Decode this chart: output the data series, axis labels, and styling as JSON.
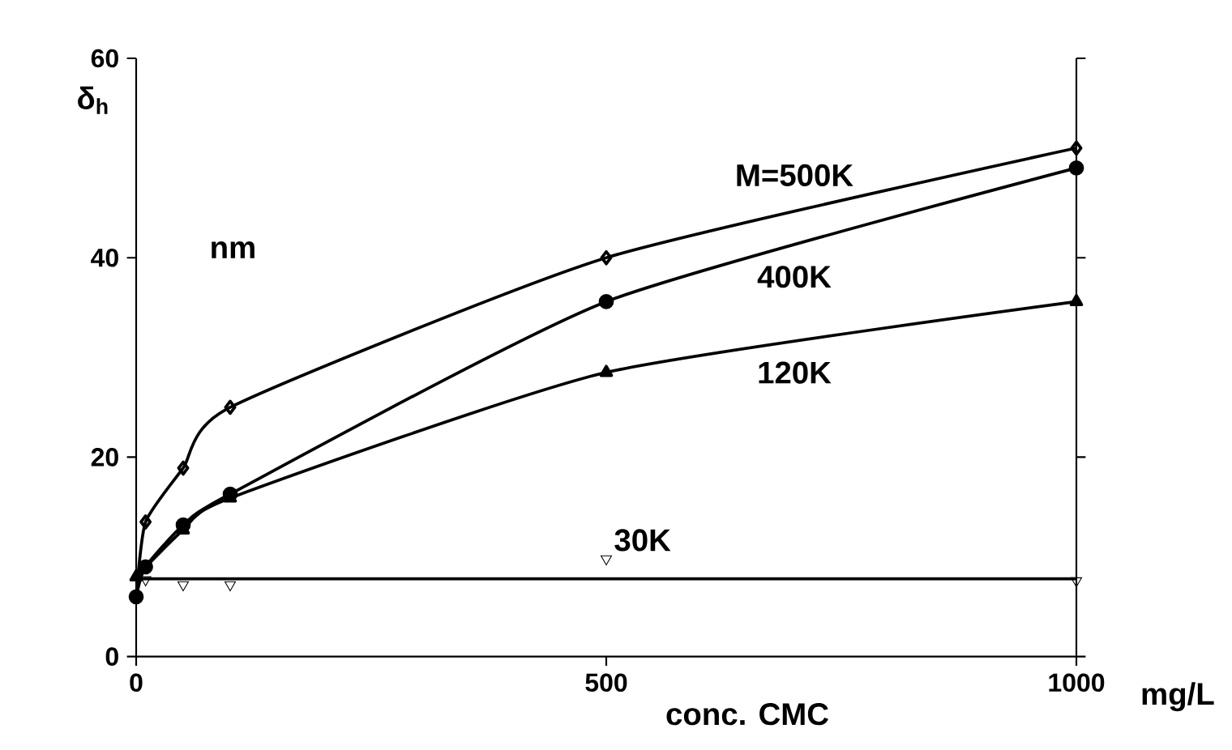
{
  "chart_data": {
    "type": "line",
    "xlabel": "conc. CMC",
    "ylabel": "δ$_{h}$",
    "annotations": [
      "nm",
      "mg/L"
    ],
    "xlim": [
      0,
      1000
    ],
    "xticks": [
      0,
      500,
      1000
    ],
    "ylim": [
      0,
      60
    ],
    "yticks": [
      0,
      20,
      40,
      60
    ],
    "grid": false,
    "series": [
      {
        "name": "M=500K",
        "color": "#000000",
        "marker": "diamond",
        "x": [
          0,
          10,
          50,
          100,
          500,
          1000
        ],
        "values": [
          6,
          13.5,
          18.9,
          25,
          40,
          51
        ]
      },
      {
        "name": "400K",
        "color": "#000000",
        "marker": "circle",
        "x": [
          0,
          10,
          50,
          100,
          500,
          1000
        ],
        "values": [
          6,
          9,
          13.2,
          16.3,
          35.6,
          49
        ]
      },
      {
        "name": "120K",
        "color": "#000000",
        "marker": "triangle",
        "x": [
          0,
          10,
          50,
          100,
          500,
          1000
        ],
        "values": [
          8,
          null,
          12.7,
          15.9,
          28.5,
          35.6
        ]
      },
      {
        "name": "30K",
        "type": "scatter",
        "color": "#000000",
        "marker": "triangle-down",
        "x": [
          10,
          50,
          100,
          500,
          1000
        ],
        "values": [
          7.7,
          7.2,
          7.2,
          9.8,
          7.6
        ]
      },
      {
        "type": "line",
        "color": "#000000",
        "marker": "none",
        "x": [
          0,
          1000
        ],
        "values": [
          7.8,
          7.8
        ]
      }
    ]
  }
}
